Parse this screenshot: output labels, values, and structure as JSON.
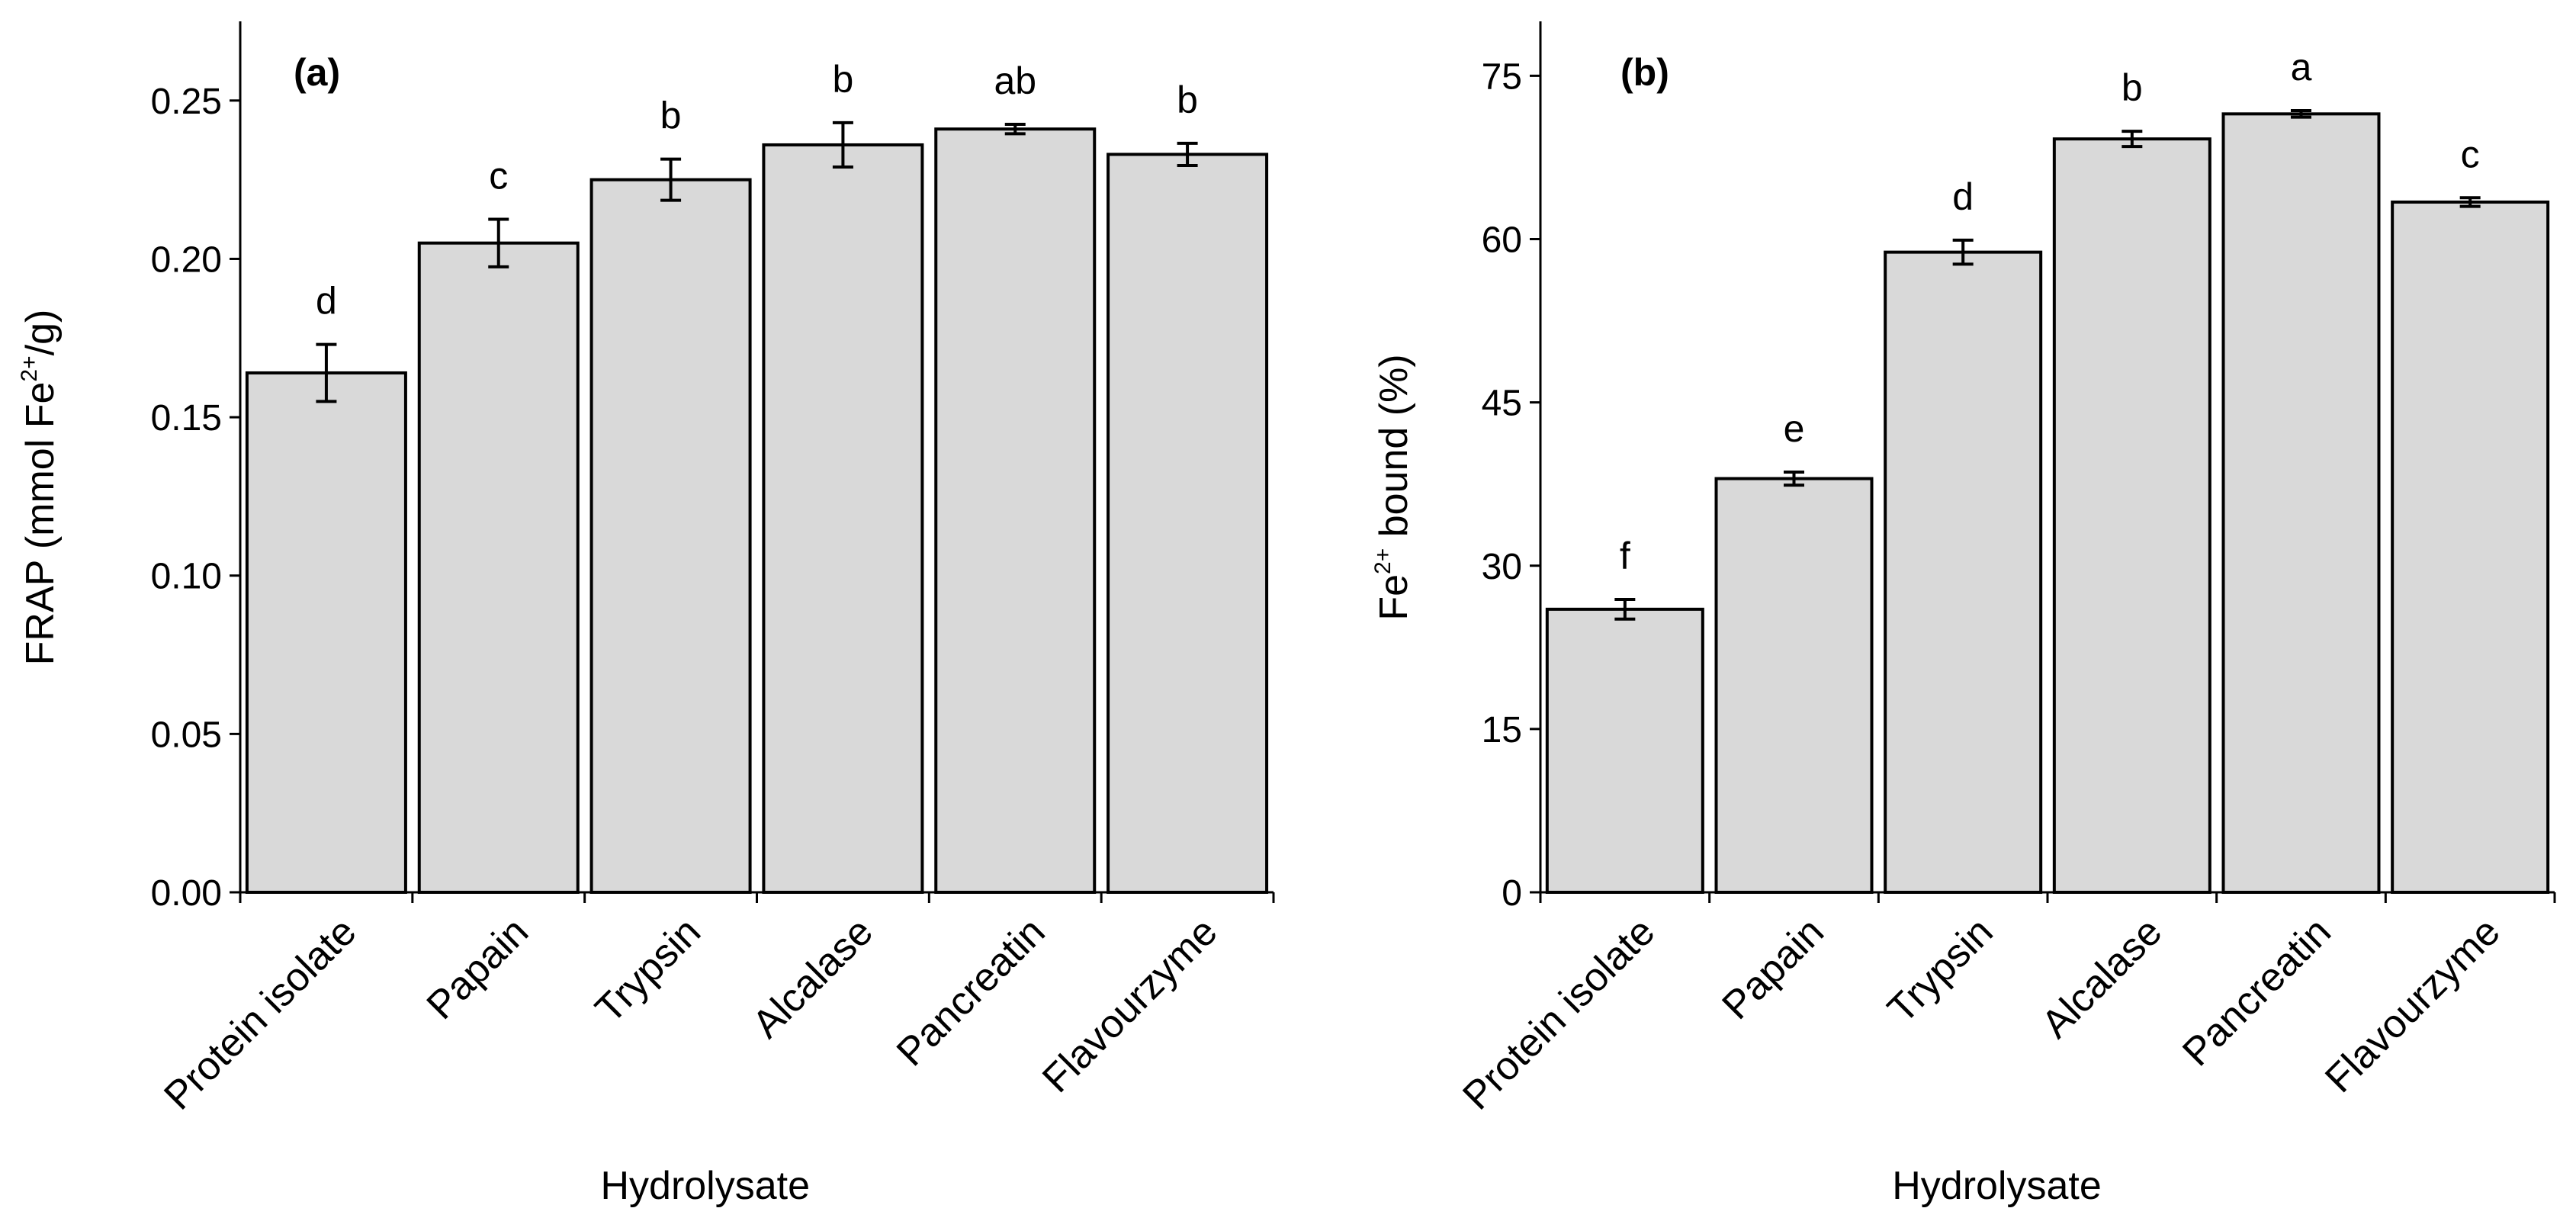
{
  "chart_data": [
    {
      "type": "bar",
      "panel_label": "(a)",
      "title": "",
      "xlabel": "Hydrolysate",
      "ylabel": {
        "prefix": "FRAP (mmol Fe",
        "superscript": "2+",
        "suffix": "/g)"
      },
      "ylim": [
        0,
        0.275
      ],
      "yticks": [
        0,
        0.05,
        0.1,
        0.15,
        0.2,
        0.25
      ],
      "ytick_labels": [
        "0.00",
        "0.05",
        "0.10",
        "0.15",
        "0.20",
        "0.25"
      ],
      "categories": [
        "Protein isolate",
        "Papain",
        "Trypsin",
        "Alcalase",
        "Pancreatin",
        "Flavourzyme"
      ],
      "values": [
        0.164,
        0.205,
        0.225,
        0.236,
        0.241,
        0.233
      ],
      "errors": [
        0.009,
        0.0075,
        0.0065,
        0.007,
        0.0015,
        0.0035
      ],
      "significance_letters": [
        "d",
        "c",
        "b",
        "b",
        "ab",
        "b"
      ],
      "bar_color": "#d9d9d9",
      "grid": false
    },
    {
      "type": "bar",
      "panel_label": "(b)",
      "title": "",
      "xlabel": "Hydrolysate",
      "ylabel": {
        "prefix": "Fe",
        "superscript": "2+",
        "suffix": " bound (%)"
      },
      "ylim": [
        0,
        80
      ],
      "yticks": [
        0,
        15,
        30,
        45,
        60,
        75
      ],
      "ytick_labels": [
        "0",
        "15",
        "30",
        "45",
        "60",
        "75"
      ],
      "categories": [
        "Protein isolate",
        "Papain",
        "Trypsin",
        "Alcalase",
        "Pancreatin",
        "Flavourzyme"
      ],
      "values": [
        26.0,
        38.0,
        58.8,
        69.2,
        71.5,
        63.4
      ],
      "errors": [
        0.9,
        0.6,
        1.1,
        0.7,
        0.3,
        0.4
      ],
      "significance_letters": [
        "f",
        "e",
        "d",
        "b",
        "a",
        "c"
      ],
      "bar_color": "#d9d9d9",
      "grid": false
    }
  ]
}
